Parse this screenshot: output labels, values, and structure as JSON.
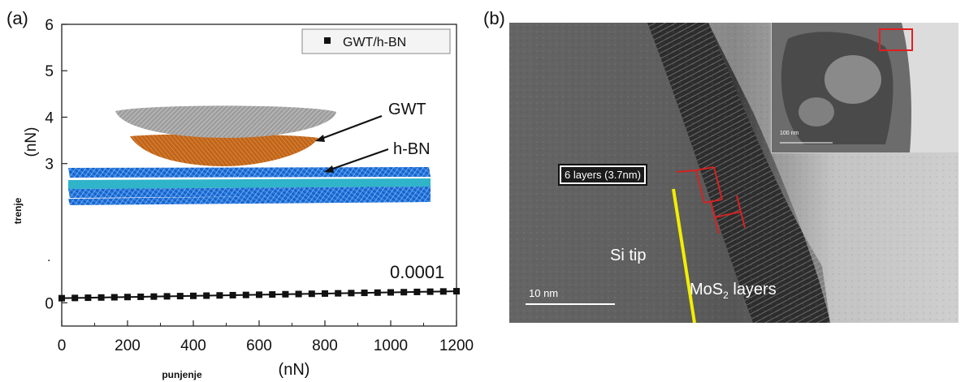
{
  "panel_a": {
    "label": "(a)",
    "legend": "GWT/h-BN",
    "ylabel_unit": "(nN)",
    "ylabel_word": "trenje",
    "xlabel_unit": "(nN)",
    "xlabel_word": "punjenje",
    "ytick_dot": ".",
    "annotation": "0.0001",
    "inset_labels": {
      "gwt": "GWT",
      "hbn": "h-BN"
    }
  },
  "panel_b": {
    "label": "(b)",
    "layers_box": "6 layers (3.7nm)",
    "si_tip": "Si tip",
    "mos2_prefix": "MoS",
    "mos2_sub": "2",
    "mos2_suffix": " layers",
    "scalebar": "10 nm",
    "inset_scalebar": "100 nm"
  },
  "colors": {
    "hbn": "#1f6fd6",
    "gwt_top": "#9a9a9a",
    "gwt_bottom": "#c8701a",
    "yellow": "#f2ee00",
    "red": "#d42222"
  },
  "chart_data": {
    "type": "scatter",
    "series": [
      {
        "name": "GWT/h-BN",
        "x": [
          0,
          40,
          80,
          120,
          160,
          200,
          240,
          280,
          320,
          360,
          400,
          440,
          480,
          520,
          560,
          600,
          640,
          680,
          720,
          760,
          800,
          840,
          880,
          920,
          960,
          1000,
          1040,
          1080,
          1120,
          1160,
          1200
        ],
        "y": [
          0.1,
          0.105,
          0.11,
          0.115,
          0.12,
          0.125,
          0.13,
          0.135,
          0.14,
          0.145,
          0.15,
          0.155,
          0.16,
          0.165,
          0.17,
          0.175,
          0.18,
          0.185,
          0.19,
          0.195,
          0.2,
          0.205,
          0.21,
          0.215,
          0.22,
          0.225,
          0.23,
          0.235,
          0.24,
          0.245,
          0.25
        ]
      }
    ],
    "xticks": [
      "0",
      "200",
      "400",
      "600",
      "800",
      "1000",
      "1200"
    ],
    "yticks": [
      "0",
      "3",
      "4",
      "5",
      "6"
    ],
    "xlim": [
      0,
      1200
    ],
    "ylim": [
      -0.5,
      6
    ],
    "grid": false,
    "legend_position": "top-right"
  }
}
